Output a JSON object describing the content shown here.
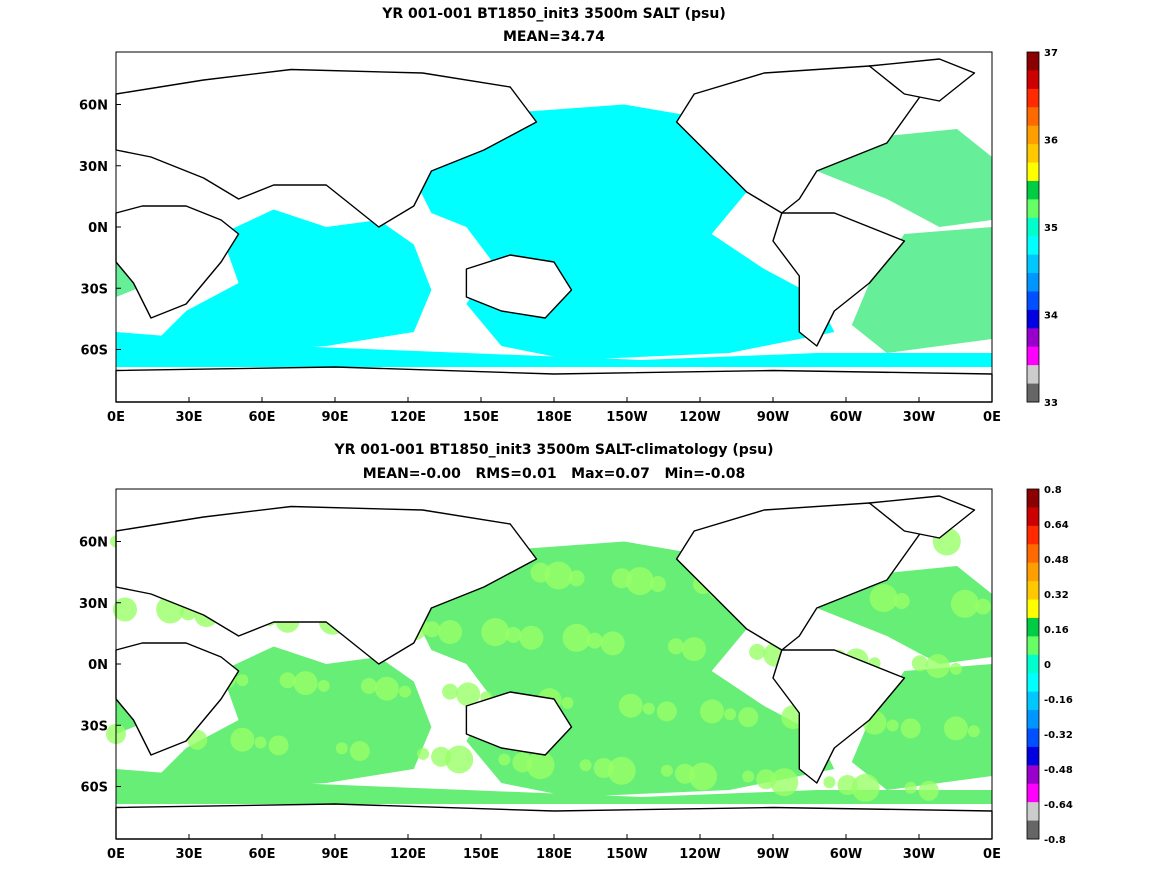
{
  "panels": [
    {
      "title": "YR 001-001 BT1850_init3 3500m SALT (psu)",
      "subtitle": "MEAN=34.74",
      "colorbar_labels": [
        "37",
        "36",
        "35",
        "34",
        "33"
      ],
      "colorbar_colors": [
        "#8b0000",
        "#cc0000",
        "#ff2a00",
        "#ff6a00",
        "#ff9e00",
        "#ffc800",
        "#ffff00",
        "#00cc44",
        "#66ff66",
        "#00ffcc",
        "#00ffff",
        "#00c8ff",
        "#0096ff",
        "#0050ff",
        "#0000e0",
        "#9900cc",
        "#ff00ff",
        "#cccccc",
        "#666666"
      ]
    },
    {
      "title": "YR 001-001 BT1850_init3 3500m SALT-climatology (psu)",
      "subtitle": "MEAN=-0.00   RMS=0.01   Max=0.07   Min=-0.08",
      "colorbar_labels": [
        "0.8",
        "0.64",
        "0.48",
        "0.32",
        "0.16",
        "0",
        "-0.16",
        "-0.32",
        "-0.48",
        "-0.64",
        "-0.8"
      ],
      "colorbar_colors": [
        "#8b0000",
        "#cc0000",
        "#ff2a00",
        "#ff6a00",
        "#ff9e00",
        "#ffc800",
        "#ffff00",
        "#00cc44",
        "#66ff66",
        "#00ffcc",
        "#00ffff",
        "#00c8ff",
        "#0096ff",
        "#0050ff",
        "#0000e0",
        "#9900cc",
        "#ff00ff",
        "#cccccc",
        "#666666"
      ]
    }
  ],
  "map": {
    "x_ticks": [
      "0E",
      "30E",
      "60E",
      "90E",
      "120E",
      "150E",
      "180E",
      "150W",
      "120W",
      "90W",
      "60W",
      "30W",
      "0E"
    ],
    "y_ticks": [
      "60N",
      "30N",
      "0N",
      "30S",
      "60S"
    ],
    "fill_top": "#00ffff",
    "fill_top_alt": "#66ee99",
    "fill_bottom": "#66ee77",
    "fill_bottom_alt": "#99ff66"
  }
}
